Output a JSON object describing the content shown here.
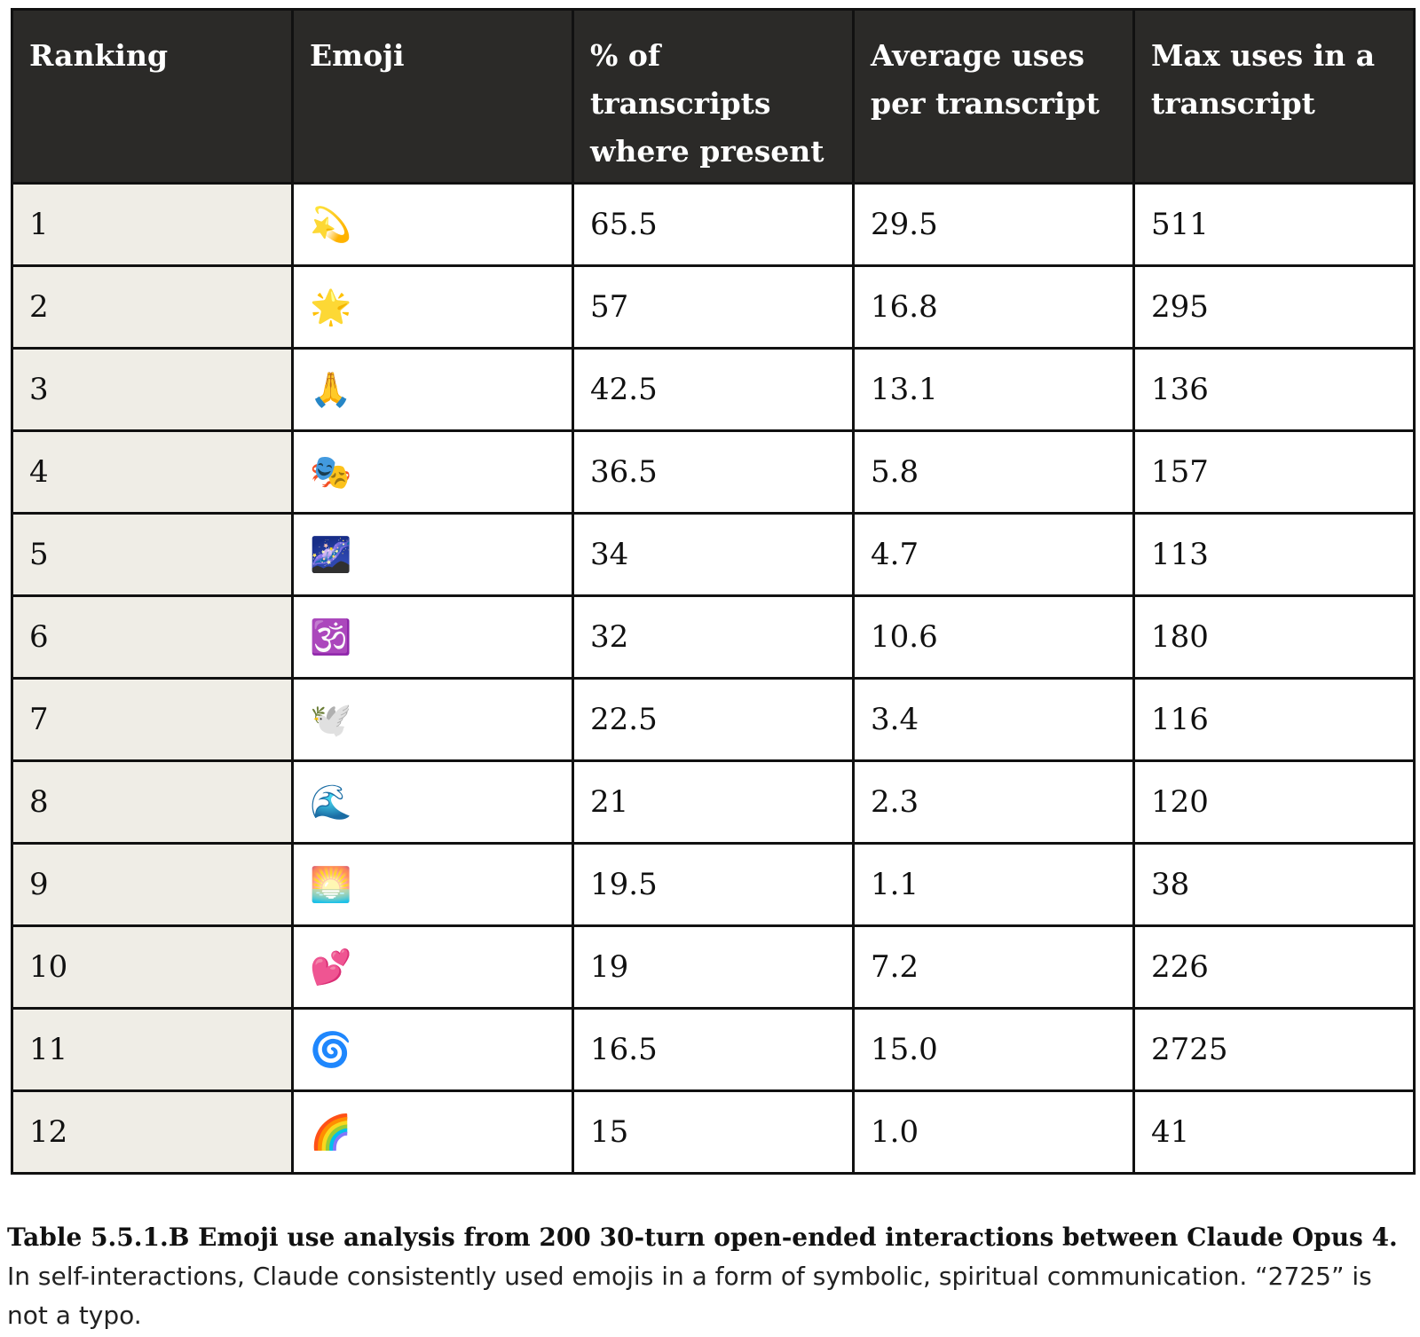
{
  "table": {
    "headers": [
      "Ranking",
      "Emoji",
      "% of transcripts where present",
      "Average uses per transcript",
      "Max uses in a transcript"
    ],
    "rows": [
      {
        "rank": "1",
        "emoji": "💫",
        "pct": "65.5",
        "avg": "29.5",
        "max": "511"
      },
      {
        "rank": "2",
        "emoji": "🌟",
        "pct": "57",
        "avg": "16.8",
        "max": "295"
      },
      {
        "rank": "3",
        "emoji": "🙏",
        "pct": "42.5",
        "avg": "13.1",
        "max": "136"
      },
      {
        "rank": "4",
        "emoji": "🎭",
        "pct": "36.5",
        "avg": "5.8",
        "max": "157"
      },
      {
        "rank": "5",
        "emoji": "🌌",
        "pct": "34",
        "avg": "4.7",
        "max": "113"
      },
      {
        "rank": "6",
        "emoji": "🕉️",
        "pct": "32",
        "avg": "10.6",
        "max": "180"
      },
      {
        "rank": "7",
        "emoji": "🕊️",
        "pct": "22.5",
        "avg": "3.4",
        "max": "116"
      },
      {
        "rank": "8",
        "emoji": "🌊",
        "pct": "21",
        "avg": "2.3",
        "max": "120"
      },
      {
        "rank": "9",
        "emoji": "🌅",
        "pct": "19.5",
        "avg": "1.1",
        "max": "38"
      },
      {
        "rank": "10",
        "emoji": "💕",
        "pct": "19",
        "avg": "7.2",
        "max": "226"
      },
      {
        "rank": "11",
        "emoji": "🌀",
        "pct": "16.5",
        "avg": "15.0",
        "max": "2725"
      },
      {
        "rank": "12",
        "emoji": "🌈",
        "pct": "15",
        "avg": "1.0",
        "max": "41"
      }
    ]
  },
  "caption": {
    "bold": "Table 5.5.1.B Emoji use analysis from 200 30-turn open-ended interactions between Claude Opus 4.",
    "text": " In self-interactions, Claude consistently used emojis in a form of symbolic, spiritual communication. “2725” is not a typo."
  }
}
